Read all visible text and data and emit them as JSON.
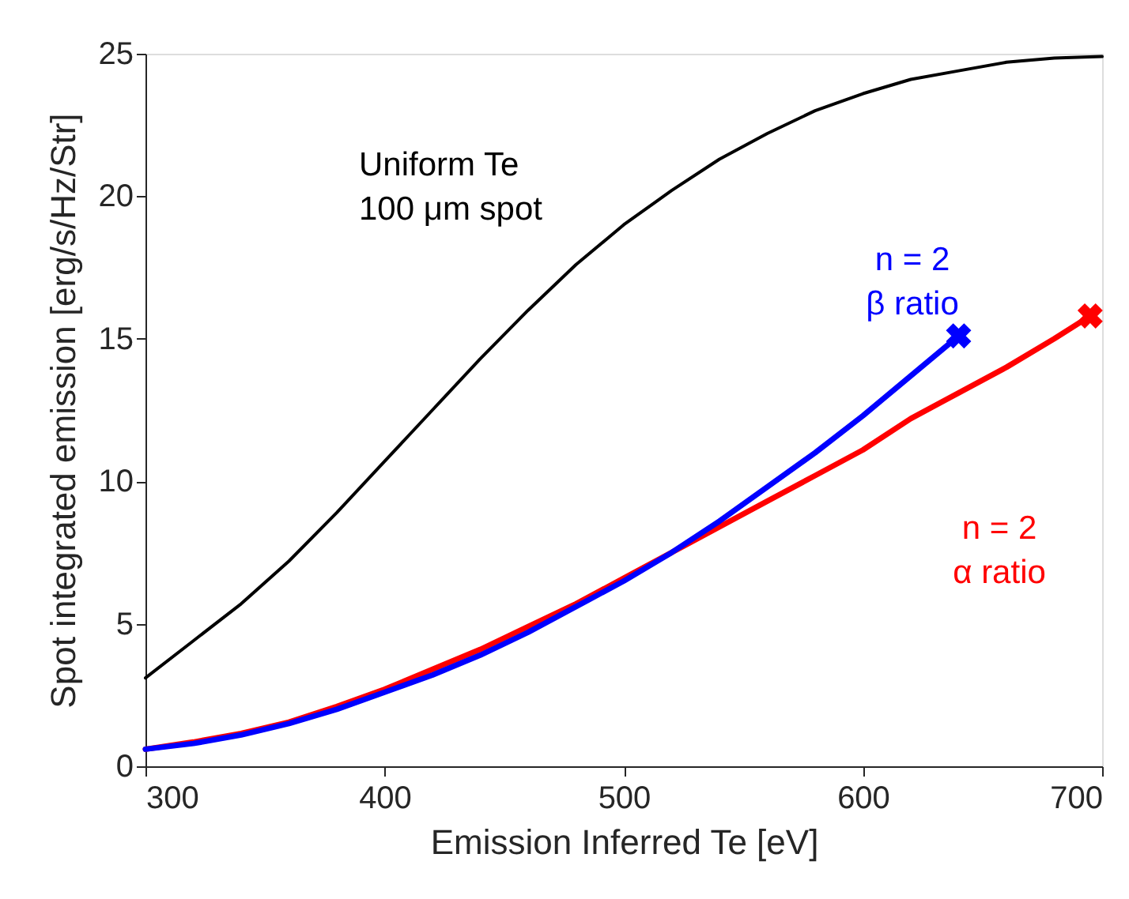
{
  "chart_data": {
    "type": "line",
    "xlabel": "Emission Inferred Te [eV]",
    "ylabel": "Spot integrated emission [erg/s/Hz/Str]",
    "xlim": [
      300,
      700
    ],
    "ylim": [
      0,
      25
    ],
    "xticks": [
      300,
      400,
      500,
      600,
      700
    ],
    "yticks": [
      0,
      5,
      10,
      15,
      20,
      25
    ],
    "marker": "none",
    "line_style": "solid",
    "series": [
      {
        "name": "Uniform Te\n100 μm spot",
        "color": "#000000",
        "x": [
          300,
          320,
          340,
          360,
          380,
          400,
          420,
          440,
          460,
          480,
          500,
          520,
          540,
          560,
          580,
          600,
          620,
          640,
          660,
          680,
          700
        ],
        "values": [
          3.1,
          4.4,
          5.7,
          7.2,
          8.9,
          10.7,
          12.5,
          14.3,
          16.0,
          17.6,
          19.0,
          20.2,
          21.3,
          22.2,
          23.0,
          23.6,
          24.1,
          24.4,
          24.7,
          24.85,
          24.9
        ]
      },
      {
        "name": "n = 2\nα ratio",
        "color": "#ff0000",
        "x": [
          300,
          320,
          340,
          360,
          380,
          400,
          420,
          440,
          460,
          480,
          500,
          520,
          540,
          560,
          580,
          600,
          620,
          640,
          660,
          680,
          695
        ],
        "values": [
          0.6,
          0.85,
          1.15,
          1.55,
          2.1,
          2.7,
          3.4,
          4.1,
          4.9,
          5.7,
          6.6,
          7.5,
          8.4,
          9.3,
          10.2,
          11.1,
          12.2,
          13.1,
          14.0,
          15.0,
          15.8
        ]
      },
      {
        "name": "n = 2\nβ ratio",
        "color": "#0000ff",
        "x": [
          300,
          320,
          340,
          360,
          380,
          400,
          420,
          440,
          460,
          480,
          500,
          520,
          540,
          560,
          580,
          600,
          620,
          640
        ],
        "values": [
          0.6,
          0.8,
          1.1,
          1.5,
          2.0,
          2.6,
          3.2,
          3.9,
          4.7,
          5.6,
          6.5,
          7.5,
          8.6,
          9.8,
          11.0,
          12.3,
          13.7,
          15.1
        ]
      },
      {
        "type": "scatter",
        "marker": "cross",
        "color": "#0000ff",
        "x": [
          640
        ],
        "values": [
          15.1
        ]
      },
      {
        "type": "scatter",
        "marker": "cross",
        "color": "#ff0000",
        "x": [
          695
        ],
        "values": [
          15.8
        ]
      }
    ]
  }
}
